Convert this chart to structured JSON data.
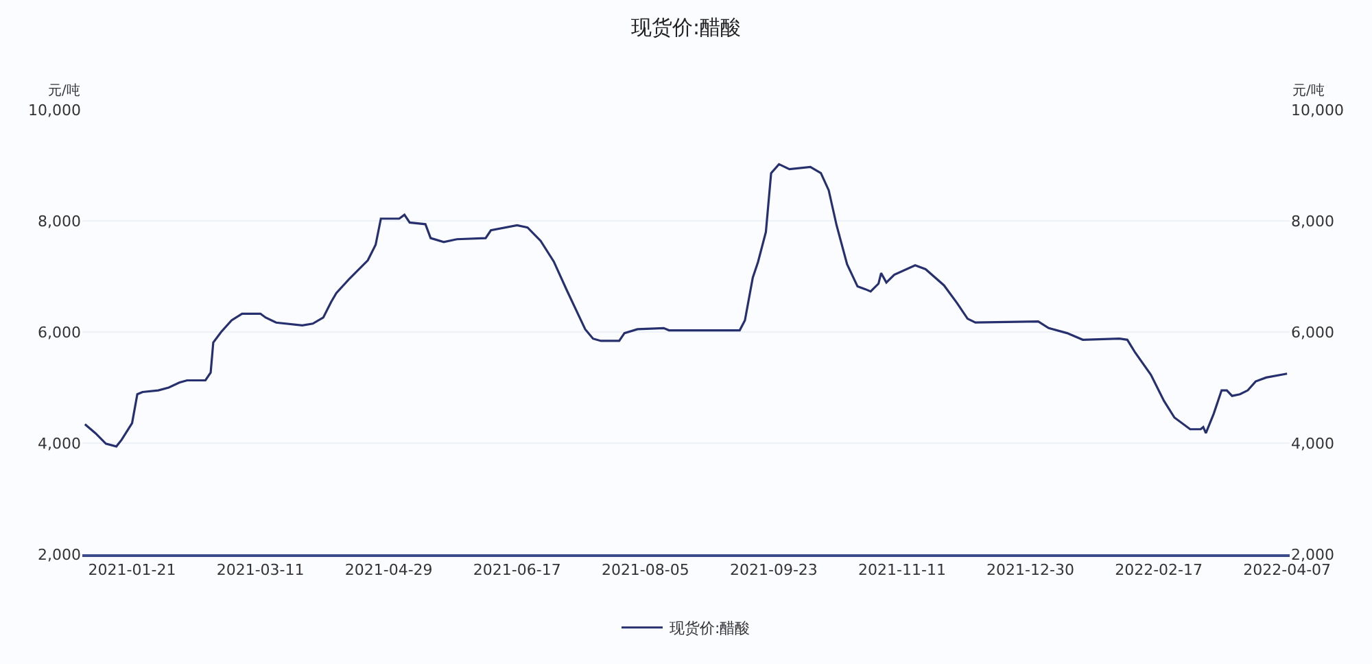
{
  "chart_data": {
    "type": "line",
    "title": "现货价:醋酸",
    "ylabel": "元/吨",
    "y2label": "元/吨",
    "x": [
      "2021-01-03",
      "2021-01-07",
      "2021-01-11",
      "2021-01-15",
      "2021-01-17",
      "2021-01-21",
      "2021-01-23",
      "2021-01-25",
      "2021-01-31",
      "2021-02-04",
      "2021-02-08",
      "2021-02-11",
      "2021-02-18",
      "2021-02-20",
      "2021-02-21",
      "2021-02-24",
      "2021-02-28",
      "2021-03-04",
      "2021-03-11",
      "2021-03-13",
      "2021-03-17",
      "2021-03-27",
      "2021-03-31",
      "2021-04-04",
      "2021-04-07",
      "2021-04-09",
      "2021-04-14",
      "2021-04-17",
      "2021-04-21",
      "2021-04-24",
      "2021-04-26",
      "2021-05-03",
      "2021-05-05",
      "2021-05-07",
      "2021-05-13",
      "2021-05-15",
      "2021-05-20",
      "2021-05-25",
      "2021-06-05",
      "2021-06-07",
      "2021-06-17",
      "2021-06-21",
      "2021-06-26",
      "2021-07-01",
      "2021-07-06",
      "2021-07-10",
      "2021-07-13",
      "2021-07-16",
      "2021-07-19",
      "2021-07-26",
      "2021-07-28",
      "2021-08-02",
      "2021-08-12",
      "2021-08-14",
      "2021-08-25",
      "2021-09-10",
      "2021-09-12",
      "2021-09-15",
      "2021-09-17",
      "2021-09-20",
      "2021-09-22",
      "2021-09-25",
      "2021-09-29",
      "2021-10-07",
      "2021-10-11",
      "2021-10-14",
      "2021-10-17",
      "2021-10-21",
      "2021-10-25",
      "2021-10-28",
      "2021-10-30",
      "2021-11-02",
      "2021-11-03",
      "2021-11-05",
      "2021-11-08",
      "2021-11-16",
      "2021-11-20",
      "2021-11-27",
      "2021-12-02",
      "2021-12-06",
      "2021-12-09",
      "2022-01-02",
      "2022-01-06",
      "2022-01-13",
      "2022-01-19",
      "2022-02-02",
      "2022-02-05",
      "2022-02-08",
      "2022-02-14",
      "2022-02-19",
      "2022-02-23",
      "2022-03-01",
      "2022-03-05",
      "2022-03-06",
      "2022-03-07",
      "2022-03-10",
      "2022-03-13",
      "2022-03-15",
      "2022-03-17",
      "2022-03-20",
      "2022-03-23",
      "2022-03-26",
      "2022-03-30",
      "2022-04-07"
    ],
    "series": [
      {
        "name": "现货价:醋酸",
        "color": "#27306e",
        "values": [
          4340,
          4180,
          3990,
          3940,
          4060,
          4360,
          4880,
          4920,
          4950,
          5000,
          5090,
          5130,
          5130,
          5270,
          5810,
          6000,
          6210,
          6330,
          6330,
          6260,
          6170,
          6120,
          6150,
          6260,
          6540,
          6700,
          6960,
          7100,
          7290,
          7570,
          8040,
          8040,
          8110,
          7970,
          7940,
          7690,
          7620,
          7670,
          7690,
          7830,
          7920,
          7880,
          7640,
          7270,
          6750,
          6350,
          6050,
          5880,
          5840,
          5840,
          5980,
          6050,
          6070,
          6030,
          6030,
          6030,
          6210,
          6980,
          7260,
          7800,
          8860,
          9020,
          8930,
          8970,
          8860,
          8550,
          7920,
          7220,
          6820,
          6770,
          6730,
          6870,
          7060,
          6890,
          7030,
          7200,
          7130,
          6840,
          6520,
          6240,
          6170,
          6190,
          6070,
          5980,
          5860,
          5880,
          5860,
          5630,
          5230,
          4760,
          4460,
          4250,
          4250,
          4290,
          4180,
          4530,
          4950,
          4950,
          4850,
          4880,
          4950,
          5110,
          5180,
          5250
        ]
      }
    ],
    "xlim": [
      "2021-01-02",
      "2022-04-08"
    ],
    "xticks": [
      "2021-01-21",
      "2021-03-11",
      "2021-04-29",
      "2021-06-17",
      "2021-08-05",
      "2021-09-23",
      "2021-11-11",
      "2021-12-30",
      "2022-02-17",
      "2022-04-07"
    ],
    "ylim": [
      2000,
      10000
    ],
    "yticks": [
      {
        "value": 2000,
        "label": "2,000"
      },
      {
        "value": 4000,
        "label": "4,000"
      },
      {
        "value": 6000,
        "label": "6,000"
      },
      {
        "value": 8000,
        "label": "8,000"
      },
      {
        "value": 10000,
        "label": "10,000"
      }
    ],
    "y2lim": [
      2000,
      10000
    ],
    "y2ticks": [
      {
        "value": 2000,
        "label": "2,000"
      },
      {
        "value": 4000,
        "label": "4,000"
      },
      {
        "value": 6000,
        "label": "6,000"
      },
      {
        "value": 8000,
        "label": "8,000"
      },
      {
        "value": 10000,
        "label": "10,000"
      }
    ],
    "grid": "y",
    "legend": "bottom",
    "marker": "none",
    "line_style": "solid"
  }
}
